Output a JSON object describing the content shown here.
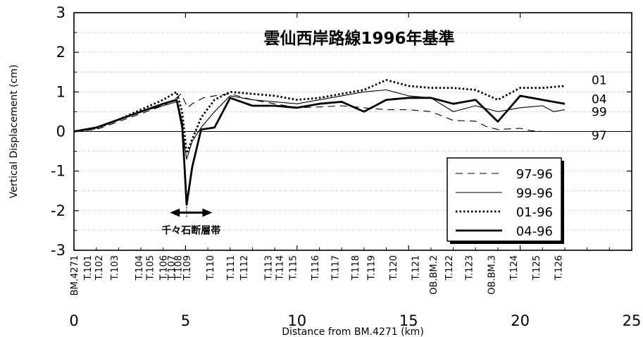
{
  "chart_data": {
    "type": "line",
    "title": "雲仙西岸路線1996年基準",
    "xlabel": "Distance from BM.4271 (km)",
    "ylabel": "Vertical Displacement (cm)",
    "xlim": [
      0,
      25
    ],
    "ylim": [
      -3,
      3
    ],
    "x_ticks": [
      "0",
      "5",
      "10",
      "15",
      "20",
      "25"
    ],
    "y_ticks": [
      "3",
      "2",
      "1",
      "0",
      "-1",
      "-2",
      "-3"
    ],
    "zero_line": true,
    "legend_position": "lower-right",
    "benchmarks": [
      {
        "label": "BM.4271",
        "x": 0
      },
      {
        "label": "T.101",
        "x": 0.6
      },
      {
        "label": "T.102",
        "x": 1.1
      },
      {
        "label": "T.103",
        "x": 1.8
      },
      {
        "label": "T.104",
        "x": 2.9
      },
      {
        "label": "T.105",
        "x": 3.4
      },
      {
        "label": "T.106",
        "x": 4.0
      },
      {
        "label": "T.107",
        "x": 4.35
      },
      {
        "label": "T.108",
        "x": 4.65
      },
      {
        "label": "T.109",
        "x": 5.05
      },
      {
        "label": "T.110",
        "x": 6.1
      },
      {
        "label": "T.111",
        "x": 7.0
      },
      {
        "label": "T.112",
        "x": 7.6
      },
      {
        "label": "T.113",
        "x": 8.7
      },
      {
        "label": "T.114",
        "x": 9.2
      },
      {
        "label": "T.115",
        "x": 9.8
      },
      {
        "label": "T.116",
        "x": 10.8
      },
      {
        "label": "T.117",
        "x": 11.7
      },
      {
        "label": "T.118",
        "x": 12.6
      },
      {
        "label": "T.119",
        "x": 13.3
      },
      {
        "label": "T.120",
        "x": 14.3
      },
      {
        "label": "T.121",
        "x": 15.3
      },
      {
        "label": "OB.BM.2",
        "x": 16.1
      },
      {
        "label": "T.122",
        "x": 16.8
      },
      {
        "label": "T.123",
        "x": 17.7
      },
      {
        "label": "OB.BM.3",
        "x": 18.7
      },
      {
        "label": "T.124",
        "x": 19.7
      },
      {
        "label": "T.125",
        "x": 20.7
      },
      {
        "label": "T.126",
        "x": 21.7
      }
    ],
    "series": [
      {
        "name": "97-96",
        "end_label": "97",
        "style": "dashed",
        "points": [
          [
            0,
            0
          ],
          [
            1,
            0.05
          ],
          [
            2,
            0.25
          ],
          [
            3,
            0.45
          ],
          [
            4,
            0.65
          ],
          [
            4.6,
            0.85
          ],
          [
            4.8,
            0.95
          ],
          [
            5.1,
            0.6
          ],
          [
            5.3,
            0.7
          ],
          [
            5.8,
            0.85
          ],
          [
            6.3,
            0.9
          ],
          [
            7,
            0.95
          ],
          [
            8,
            0.8
          ],
          [
            9,
            0.7
          ],
          [
            10,
            0.6
          ],
          [
            11,
            0.62
          ],
          [
            12,
            0.65
          ],
          [
            13,
            0.6
          ],
          [
            14,
            0.55
          ],
          [
            15,
            0.55
          ],
          [
            16,
            0.5
          ],
          [
            17,
            0.28
          ],
          [
            18,
            0.26
          ],
          [
            18.5,
            0.12
          ],
          [
            19,
            0.05
          ],
          [
            20,
            0.08
          ],
          [
            20.5,
            0.02
          ],
          [
            21,
            0.0
          ],
          [
            22,
            0.0
          ]
        ]
      },
      {
        "name": "99-96",
        "end_label": "99",
        "style": "thin",
        "points": [
          [
            0,
            0
          ],
          [
            1,
            0.1
          ],
          [
            2,
            0.3
          ],
          [
            3,
            0.5
          ],
          [
            4,
            0.65
          ],
          [
            4.6,
            0.75
          ],
          [
            4.9,
            -0.1
          ],
          [
            5.05,
            -0.7
          ],
          [
            5.3,
            -0.25
          ],
          [
            5.7,
            0.1
          ],
          [
            6.3,
            0.5
          ],
          [
            7,
            0.9
          ],
          [
            8,
            0.8
          ],
          [
            9,
            0.75
          ],
          [
            10,
            0.7
          ],
          [
            11,
            0.8
          ],
          [
            12,
            0.9
          ],
          [
            13,
            1.0
          ],
          [
            14,
            1.05
          ],
          [
            15,
            0.9
          ],
          [
            16,
            0.85
          ],
          [
            17,
            0.5
          ],
          [
            18,
            0.65
          ],
          [
            19,
            0.5
          ],
          [
            20,
            0.6
          ],
          [
            21,
            0.65
          ],
          [
            21.5,
            0.5
          ],
          [
            22,
            0.55
          ]
        ]
      },
      {
        "name": "01-96",
        "end_label": "01",
        "style": "dotted",
        "points": [
          [
            0,
            0
          ],
          [
            1,
            0.08
          ],
          [
            2,
            0.3
          ],
          [
            3,
            0.55
          ],
          [
            4,
            0.8
          ],
          [
            4.6,
            1.0
          ],
          [
            4.85,
            0.5
          ],
          [
            5.05,
            -0.55
          ],
          [
            5.3,
            -0.2
          ],
          [
            5.7,
            0.35
          ],
          [
            6.3,
            0.8
          ],
          [
            7,
            1.0
          ],
          [
            8,
            0.95
          ],
          [
            9,
            0.9
          ],
          [
            10,
            0.8
          ],
          [
            11,
            0.85
          ],
          [
            12,
            0.95
          ],
          [
            13,
            1.05
          ],
          [
            14,
            1.3
          ],
          [
            15,
            1.15
          ],
          [
            16,
            1.1
          ],
          [
            17,
            1.1
          ],
          [
            18,
            1.05
          ],
          [
            19,
            0.8
          ],
          [
            20,
            1.1
          ],
          [
            21,
            1.1
          ],
          [
            22,
            1.15
          ]
        ]
      },
      {
        "name": "04-96",
        "end_label": "04",
        "style": "thick",
        "points": [
          [
            0,
            0
          ],
          [
            1,
            0.1
          ],
          [
            2,
            0.3
          ],
          [
            3,
            0.5
          ],
          [
            4,
            0.7
          ],
          [
            4.6,
            0.8
          ],
          [
            4.85,
            0.2
          ],
          [
            5.05,
            -1.85
          ],
          [
            5.3,
            -0.9
          ],
          [
            5.7,
            0.05
          ],
          [
            6.3,
            0.1
          ],
          [
            7,
            0.85
          ],
          [
            8,
            0.65
          ],
          [
            9,
            0.65
          ],
          [
            10,
            0.6
          ],
          [
            11,
            0.7
          ],
          [
            12,
            0.75
          ],
          [
            13,
            0.5
          ],
          [
            14,
            0.8
          ],
          [
            15,
            0.85
          ],
          [
            16,
            0.85
          ],
          [
            17,
            0.7
          ],
          [
            18,
            0.8
          ],
          [
            19,
            0.25
          ],
          [
            20,
            0.9
          ],
          [
            21,
            0.8
          ],
          [
            22,
            0.7
          ]
        ]
      }
    ],
    "annotation": {
      "label": "千々石断層帯",
      "x_from": 4.3,
      "x_to": 6.2,
      "y": -2.05
    }
  }
}
